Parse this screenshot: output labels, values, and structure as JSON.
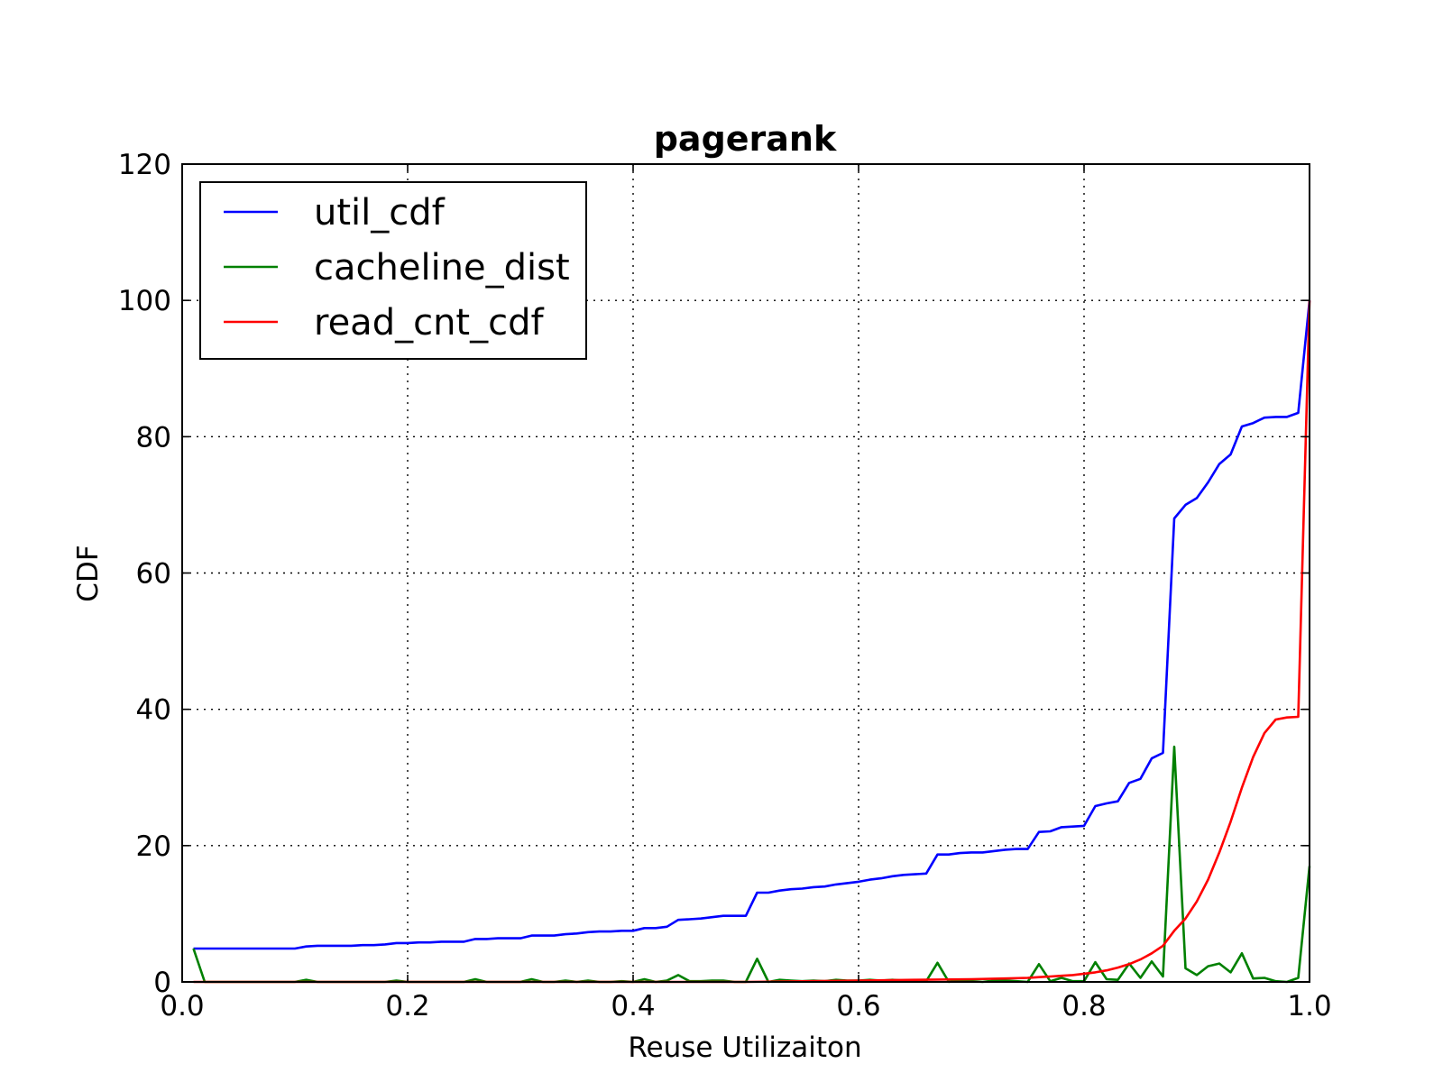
{
  "chart_data": {
    "type": "line",
    "title": "pagerank",
    "xlabel": "Reuse Utilizaiton",
    "ylabel": "CDF",
    "xlim": [
      0.0,
      1.0
    ],
    "ylim": [
      0,
      120
    ],
    "xticks": [
      0.0,
      0.2,
      0.4,
      0.6,
      0.8,
      1.0
    ],
    "xtick_labels": [
      "0.0",
      "0.2",
      "0.4",
      "0.6",
      "0.8",
      "1.0"
    ],
    "yticks": [
      0,
      20,
      40,
      60,
      80,
      100,
      120
    ],
    "ytick_labels": [
      "0",
      "20",
      "40",
      "60",
      "80",
      "100",
      "120"
    ],
    "grid": true,
    "legend_position": "top-left",
    "series": [
      {
        "name": "util_cdf",
        "color": "#0000ff",
        "x": [
          0.01,
          0.02,
          0.03,
          0.04,
          0.05,
          0.06,
          0.07,
          0.08,
          0.09,
          0.1,
          0.11,
          0.12,
          0.13,
          0.14,
          0.15,
          0.16,
          0.17,
          0.18,
          0.19,
          0.2,
          0.21,
          0.22,
          0.23,
          0.24,
          0.25,
          0.26,
          0.27,
          0.28,
          0.29,
          0.3,
          0.31,
          0.32,
          0.33,
          0.34,
          0.35,
          0.36,
          0.37,
          0.38,
          0.39,
          0.4,
          0.41,
          0.42,
          0.43,
          0.44,
          0.45,
          0.46,
          0.47,
          0.48,
          0.49,
          0.5,
          0.51,
          0.52,
          0.53,
          0.54,
          0.55,
          0.56,
          0.57,
          0.58,
          0.59,
          0.6,
          0.61,
          0.62,
          0.63,
          0.64,
          0.65,
          0.66,
          0.67,
          0.68,
          0.69,
          0.7,
          0.71,
          0.72,
          0.73,
          0.74,
          0.75,
          0.76,
          0.77,
          0.78,
          0.79,
          0.8,
          0.81,
          0.82,
          0.83,
          0.84,
          0.85,
          0.86,
          0.87,
          0.88,
          0.89,
          0.9,
          0.91,
          0.92,
          0.93,
          0.94,
          0.95,
          0.96,
          0.97,
          0.98,
          0.99,
          1.0
        ],
        "y": [
          4.9,
          4.9,
          4.9,
          4.9,
          4.9,
          4.9,
          4.9,
          4.9,
          4.9,
          4.9,
          5.2,
          5.3,
          5.3,
          5.3,
          5.3,
          5.4,
          5.4,
          5.5,
          5.7,
          5.7,
          5.8,
          5.8,
          5.9,
          5.9,
          5.9,
          6.3,
          6.3,
          6.4,
          6.4,
          6.4,
          6.8,
          6.8,
          6.8,
          7.0,
          7.1,
          7.3,
          7.4,
          7.4,
          7.5,
          7.5,
          7.9,
          7.9,
          8.1,
          9.1,
          9.2,
          9.3,
          9.5,
          9.7,
          9.7,
          9.7,
          13.1,
          13.1,
          13.4,
          13.6,
          13.7,
          13.9,
          14.0,
          14.3,
          14.5,
          14.7,
          15.0,
          15.2,
          15.5,
          15.7,
          15.8,
          15.9,
          18.7,
          18.7,
          18.9,
          19.0,
          19.0,
          19.2,
          19.4,
          19.5,
          19.5,
          22.0,
          22.1,
          22.7,
          22.8,
          22.9,
          25.8,
          26.2,
          26.5,
          29.2,
          29.8,
          32.8,
          33.6,
          68.0,
          70.0,
          71.0,
          73.3,
          76.0,
          77.4,
          81.5,
          82.0,
          82.8,
          82.9,
          82.9,
          83.5,
          100.0
        ]
      },
      {
        "name": "cacheline_dist",
        "color": "#008000",
        "x": [
          0.01,
          0.02,
          0.03,
          0.04,
          0.05,
          0.06,
          0.07,
          0.08,
          0.09,
          0.1,
          0.11,
          0.12,
          0.13,
          0.14,
          0.15,
          0.16,
          0.17,
          0.18,
          0.19,
          0.2,
          0.21,
          0.22,
          0.23,
          0.24,
          0.25,
          0.26,
          0.27,
          0.28,
          0.29,
          0.3,
          0.31,
          0.32,
          0.33,
          0.34,
          0.35,
          0.36,
          0.37,
          0.38,
          0.39,
          0.4,
          0.41,
          0.42,
          0.43,
          0.44,
          0.45,
          0.46,
          0.47,
          0.48,
          0.49,
          0.5,
          0.51,
          0.52,
          0.53,
          0.54,
          0.55,
          0.56,
          0.57,
          0.58,
          0.59,
          0.6,
          0.61,
          0.62,
          0.63,
          0.64,
          0.65,
          0.66,
          0.67,
          0.68,
          0.69,
          0.7,
          0.71,
          0.72,
          0.73,
          0.74,
          0.75,
          0.76,
          0.77,
          0.78,
          0.79,
          0.8,
          0.81,
          0.82,
          0.83,
          0.84,
          0.85,
          0.86,
          0.87,
          0.88,
          0.89,
          0.9,
          0.91,
          0.92,
          0.93,
          0.94,
          0.95,
          0.96,
          0.97,
          0.98,
          0.99,
          1.0
        ],
        "y": [
          4.9,
          0,
          0,
          0,
          0,
          0,
          0,
          0,
          0,
          0,
          0.3,
          0,
          0,
          0,
          0,
          0,
          0,
          0,
          0.2,
          0,
          0,
          0,
          0,
          0,
          0,
          0.4,
          0,
          0,
          0,
          0,
          0.4,
          0,
          0,
          0.2,
          0,
          0.2,
          0,
          0,
          0.1,
          0,
          0.4,
          0,
          0.2,
          1.0,
          0.1,
          0.1,
          0.2,
          0.2,
          0,
          0,
          3.4,
          0,
          0.3,
          0.2,
          0.1,
          0.2,
          0.1,
          0.3,
          0.2,
          0.2,
          0.3,
          0.2,
          0.3,
          0.2,
          0.1,
          0.1,
          2.8,
          0,
          0.2,
          0.1,
          0,
          0.2,
          0.2,
          0.1,
          0,
          2.6,
          0.1,
          0.6,
          0.1,
          0.1,
          2.9,
          0.4,
          0.3,
          2.7,
          0.6,
          3.0,
          0.8,
          34.5,
          2.0,
          1.0,
          2.3,
          2.7,
          1.4,
          4.2,
          0.5,
          0.6,
          0.1,
          0,
          0.6,
          17.0
        ]
      },
      {
        "name": "read_cnt_cdf",
        "color": "#ff0000",
        "x": [
          0.01,
          0.1,
          0.2,
          0.3,
          0.4,
          0.5,
          0.6,
          0.65,
          0.7,
          0.73,
          0.75,
          0.76,
          0.77,
          0.78,
          0.79,
          0.8,
          0.81,
          0.82,
          0.83,
          0.84,
          0.85,
          0.86,
          0.87,
          0.88,
          0.89,
          0.9,
          0.91,
          0.92,
          0.93,
          0.94,
          0.95,
          0.96,
          0.97,
          0.98,
          0.99,
          1.0
        ],
        "y": [
          0,
          0,
          0,
          0,
          0,
          0,
          0.2,
          0.3,
          0.4,
          0.5,
          0.6,
          0.7,
          0.8,
          0.9,
          1.0,
          1.2,
          1.4,
          1.7,
          2.1,
          2.6,
          3.3,
          4.2,
          5.3,
          7.5,
          9.3,
          11.8,
          15.0,
          19.0,
          23.5,
          28.5,
          33.0,
          36.5,
          38.5,
          38.8,
          38.9,
          100.0
        ]
      }
    ]
  }
}
